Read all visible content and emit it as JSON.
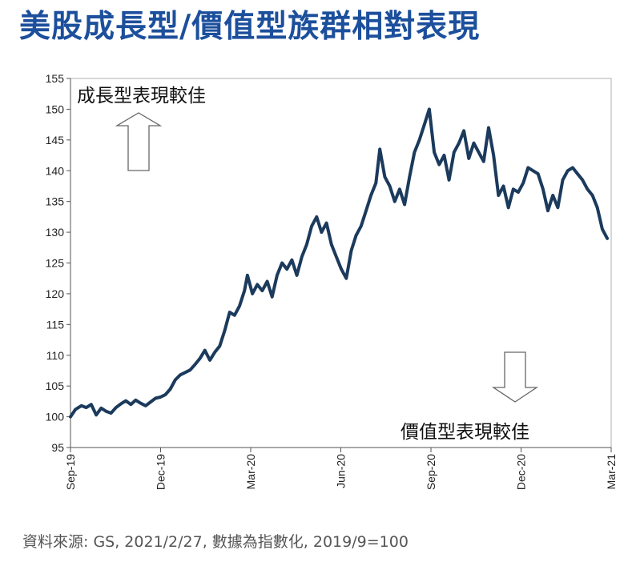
{
  "title": "美股成長型/價值型族群相對表現",
  "source": "資料來源: GS, 2021/2/27, 數據為指數化, 2019/9=100",
  "chart_data": {
    "type": "line",
    "title": "美股成長型/價值型族群相對表現",
    "xlabel": "",
    "ylabel": "",
    "ylim": [
      95,
      155
    ],
    "yticks": [
      95,
      100,
      105,
      110,
      115,
      120,
      125,
      130,
      135,
      140,
      145,
      150,
      155
    ],
    "xlim": [
      "2019-09-01",
      "2021-03-01"
    ],
    "xticks": [
      "Sep-19",
      "Dec-19",
      "Mar-20",
      "Jun-20",
      "Sep-20",
      "Dec-20",
      "Mar-21"
    ],
    "grid": false,
    "line_color": "#1b3a5c",
    "annotations": [
      {
        "text": "成長型表現較佳",
        "arrow": "up"
      },
      {
        "text": "價值型表現較佳",
        "arrow": "down"
      }
    ],
    "series": [
      {
        "points": [
          [
            "2019-09-01",
            100.0
          ],
          [
            "2019-09-06",
            101.2
          ],
          [
            "2019-09-12",
            101.8
          ],
          [
            "2019-09-17",
            101.5
          ],
          [
            "2019-09-22",
            102.0
          ],
          [
            "2019-09-27",
            100.3
          ],
          [
            "2019-10-02",
            101.4
          ],
          [
            "2019-10-07",
            100.9
          ],
          [
            "2019-10-12",
            100.6
          ],
          [
            "2019-10-17",
            101.5
          ],
          [
            "2019-10-22",
            102.1
          ],
          [
            "2019-10-27",
            102.6
          ],
          [
            "2019-11-01",
            102.0
          ],
          [
            "2019-11-06",
            102.7
          ],
          [
            "2019-11-11",
            102.2
          ],
          [
            "2019-11-16",
            101.8
          ],
          [
            "2019-11-21",
            102.4
          ],
          [
            "2019-11-26",
            103.0
          ],
          [
            "2019-12-01",
            103.2
          ],
          [
            "2019-12-06",
            103.6
          ],
          [
            "2019-12-11",
            104.5
          ],
          [
            "2019-12-16",
            106.0
          ],
          [
            "2019-12-21",
            106.8
          ],
          [
            "2019-12-26",
            107.2
          ],
          [
            "2019-12-31",
            107.6
          ],
          [
            "2020-01-05",
            108.5
          ],
          [
            "2020-01-10",
            109.5
          ],
          [
            "2020-01-15",
            110.8
          ],
          [
            "2020-01-20",
            109.2
          ],
          [
            "2020-01-25",
            110.5
          ],
          [
            "2020-01-30",
            111.5
          ],
          [
            "2020-02-04",
            114.0
          ],
          [
            "2020-02-09",
            117.0
          ],
          [
            "2020-02-14",
            116.5
          ],
          [
            "2020-02-19",
            118.0
          ],
          [
            "2020-02-24",
            120.5
          ],
          [
            "2020-02-27",
            123.0
          ],
          [
            "2020-03-03",
            120.0
          ],
          [
            "2020-03-08",
            121.5
          ],
          [
            "2020-03-13",
            120.5
          ],
          [
            "2020-03-18",
            122.0
          ],
          [
            "2020-03-23",
            119.5
          ],
          [
            "2020-03-28",
            123.0
          ],
          [
            "2020-04-02",
            125.0
          ],
          [
            "2020-04-07",
            124.0
          ],
          [
            "2020-04-12",
            125.5
          ],
          [
            "2020-04-17",
            123.0
          ],
          [
            "2020-04-22",
            126.0
          ],
          [
            "2020-04-27",
            128.0
          ],
          [
            "2020-05-02",
            131.0
          ],
          [
            "2020-05-07",
            132.5
          ],
          [
            "2020-05-12",
            130.0
          ],
          [
            "2020-05-17",
            131.5
          ],
          [
            "2020-05-22",
            128.0
          ],
          [
            "2020-05-27",
            126.0
          ],
          [
            "2020-06-01",
            124.0
          ],
          [
            "2020-06-06",
            122.5
          ],
          [
            "2020-06-11",
            127.0
          ],
          [
            "2020-06-16",
            129.5
          ],
          [
            "2020-06-21",
            131.0
          ],
          [
            "2020-06-26",
            133.5
          ],
          [
            "2020-07-01",
            136.0
          ],
          [
            "2020-07-06",
            138.0
          ],
          [
            "2020-07-10",
            143.5
          ],
          [
            "2020-07-15",
            139.0
          ],
          [
            "2020-07-20",
            137.5
          ],
          [
            "2020-07-25",
            135.0
          ],
          [
            "2020-07-30",
            137.0
          ],
          [
            "2020-08-04",
            134.5
          ],
          [
            "2020-08-09",
            139.0
          ],
          [
            "2020-08-14",
            143.0
          ],
          [
            "2020-08-19",
            145.0
          ],
          [
            "2020-08-24",
            147.5
          ],
          [
            "2020-08-29",
            150.0
          ],
          [
            "2020-09-03",
            143.0
          ],
          [
            "2020-09-08",
            141.0
          ],
          [
            "2020-09-13",
            142.5
          ],
          [
            "2020-09-18",
            138.5
          ],
          [
            "2020-09-23",
            143.0
          ],
          [
            "2020-09-28",
            144.5
          ],
          [
            "2020-10-03",
            146.5
          ],
          [
            "2020-10-08",
            142.0
          ],
          [
            "2020-10-13",
            144.5
          ],
          [
            "2020-10-18",
            143.0
          ],
          [
            "2020-10-23",
            141.5
          ],
          [
            "2020-10-28",
            147.0
          ],
          [
            "2020-11-02",
            142.5
          ],
          [
            "2020-11-07",
            136.0
          ],
          [
            "2020-11-12",
            137.5
          ],
          [
            "2020-11-17",
            134.0
          ],
          [
            "2020-11-22",
            137.0
          ],
          [
            "2020-11-27",
            136.5
          ],
          [
            "2020-12-02",
            138.0
          ],
          [
            "2020-12-07",
            140.5
          ],
          [
            "2020-12-12",
            140.0
          ],
          [
            "2020-12-17",
            139.5
          ],
          [
            "2020-12-22",
            137.0
          ],
          [
            "2020-12-27",
            133.5
          ],
          [
            "2021-01-01",
            136.0
          ],
          [
            "2021-01-06",
            134.0
          ],
          [
            "2021-01-11",
            138.5
          ],
          [
            "2021-01-16",
            140.0
          ],
          [
            "2021-01-21",
            140.5
          ],
          [
            "2021-01-26",
            139.5
          ],
          [
            "2021-01-31",
            138.5
          ],
          [
            "2021-02-05",
            137.0
          ],
          [
            "2021-02-10",
            136.0
          ],
          [
            "2021-02-15",
            134.0
          ],
          [
            "2021-02-20",
            130.5
          ],
          [
            "2021-02-25",
            129.0
          ]
        ]
      }
    ]
  }
}
